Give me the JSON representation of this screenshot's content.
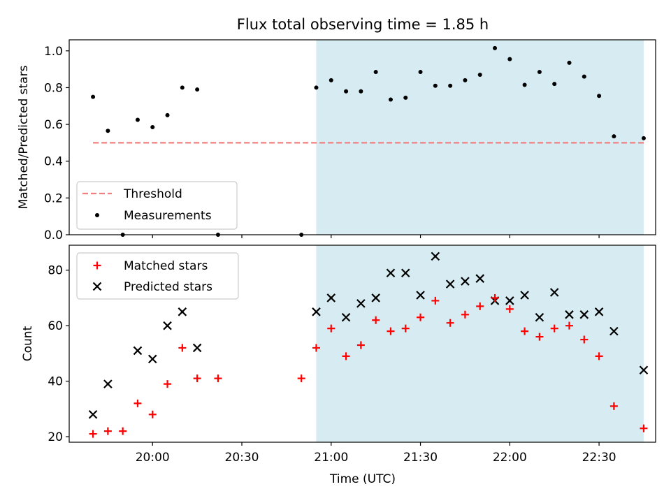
{
  "title": "Flux total observing time = 1.85 h",
  "chart_data": [
    {
      "type": "scatter",
      "ylabel": "Matched/Predicted stars",
      "ylim": [
        0.0,
        1.06
      ],
      "yticks": [
        "0.0",
        "0.2",
        "0.4",
        "0.6",
        "0.8",
        "1.0"
      ],
      "ytick_values": [
        0.0,
        0.2,
        0.4,
        0.6,
        0.8,
        1.0
      ],
      "shaded_span": {
        "from": "20:55",
        "to": "22:45",
        "color": "#add8e6"
      },
      "legend": {
        "position": "lower left",
        "entries": [
          "Threshold",
          "Measurements"
        ]
      },
      "threshold": {
        "name": "Threshold",
        "x": [
          "19:40",
          "22:45"
        ],
        "y": 0.5,
        "color": "#f08080",
        "style": "dashed"
      },
      "series": [
        {
          "name": "Measurements",
          "color": "#000000",
          "marker": "dot",
          "x": [
            "19:40",
            "19:45",
            "19:50",
            "19:55",
            "20:00",
            "20:05",
            "20:10",
            "20:15",
            "20:22",
            "20:50",
            "20:55",
            "21:00",
            "21:05",
            "21:10",
            "21:15",
            "21:20",
            "21:25",
            "21:30",
            "21:35",
            "21:40",
            "21:45",
            "21:50",
            "21:55",
            "22:00",
            "22:05",
            "22:10",
            "22:15",
            "22:20",
            "22:25",
            "22:30",
            "22:35",
            "22:45"
          ],
          "y": [
            0.75,
            0.565,
            0.0,
            0.625,
            0.585,
            0.65,
            0.8,
            0.79,
            0.0,
            0.0,
            0.8,
            0.84,
            0.78,
            0.78,
            0.885,
            0.735,
            0.745,
            0.885,
            0.81,
            0.81,
            0.84,
            0.87,
            1.015,
            0.955,
            0.815,
            0.885,
            0.82,
            0.935,
            0.86,
            0.755,
            0.535,
            0.525
          ]
        }
      ]
    },
    {
      "type": "scatter",
      "xlabel": "Time (UTC)",
      "ylabel": "Count",
      "ylim": [
        18,
        89
      ],
      "yticks": [
        "20",
        "40",
        "60",
        "80"
      ],
      "ytick_values": [
        20,
        40,
        60,
        80
      ],
      "xticks": [
        "20:00",
        "20:30",
        "21:00",
        "21:30",
        "22:00",
        "22:30"
      ],
      "xtick_values": [
        "20:00",
        "20:30",
        "21:00",
        "21:30",
        "22:00",
        "22:30"
      ],
      "xlim": [
        "19:32",
        "22:49"
      ],
      "shaded_span": {
        "from": "20:55",
        "to": "22:45",
        "color": "#add8e6"
      },
      "legend": {
        "position": "upper left",
        "entries": [
          "Matched stars",
          "Predicted stars"
        ]
      },
      "series": [
        {
          "name": "Matched stars",
          "color": "#ff0000",
          "marker": "plus",
          "x": [
            "19:40",
            "19:45",
            "19:50",
            "19:55",
            "20:00",
            "20:05",
            "20:10",
            "20:15",
            "20:22",
            "20:50",
            "20:55",
            "21:00",
            "21:05",
            "21:10",
            "21:15",
            "21:20",
            "21:25",
            "21:30",
            "21:35",
            "21:40",
            "21:45",
            "21:50",
            "21:55",
            "22:00",
            "22:05",
            "22:10",
            "22:15",
            "22:20",
            "22:25",
            "22:30",
            "22:35",
            "22:45"
          ],
          "y": [
            21,
            22,
            22,
            32,
            28,
            39,
            52,
            41,
            41,
            41,
            52,
            59,
            49,
            53,
            62,
            58,
            59,
            63,
            69,
            61,
            64,
            67,
            70,
            66,
            58,
            56,
            59,
            60,
            55,
            49,
            31,
            23
          ]
        },
        {
          "name": "Predicted stars",
          "color": "#000000",
          "marker": "x",
          "x": [
            "19:40",
            "19:45",
            "19:55",
            "20:00",
            "20:05",
            "20:10",
            "20:15",
            "20:55",
            "21:00",
            "21:05",
            "21:10",
            "21:15",
            "21:20",
            "21:25",
            "21:30",
            "21:35",
            "21:40",
            "21:45",
            "21:50",
            "21:55",
            "22:00",
            "22:05",
            "22:10",
            "22:15",
            "22:20",
            "22:25",
            "22:30",
            "22:35",
            "22:45"
          ],
          "y": [
            28,
            39,
            51,
            48,
            60,
            65,
            52,
            65,
            70,
            63,
            68,
            70,
            79,
            79,
            71,
            85,
            75,
            76,
            77,
            69,
            69,
            71,
            63,
            72,
            64,
            64,
            65,
            58,
            44
          ]
        }
      ]
    }
  ]
}
